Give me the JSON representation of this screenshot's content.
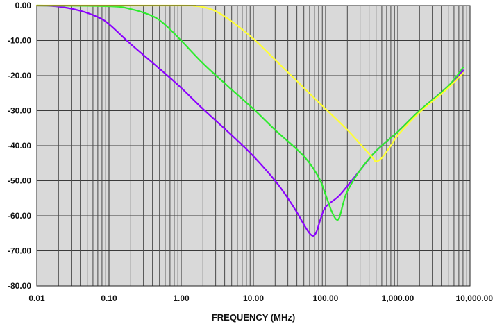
{
  "chart_data": {
    "type": "line",
    "title": "",
    "xlabel": "FREQUENCY (MHz)",
    "ylabel": "",
    "x_scale": "log",
    "xlim": [
      0.01,
      10000
    ],
    "ylim": [
      -80,
      0
    ],
    "grid": true,
    "background": "#d9d9d9",
    "x_ticks": [
      0.01,
      0.1,
      1,
      10,
      100,
      1000,
      10000
    ],
    "x_tick_labels": [
      "0.01",
      "0.10",
      "1.00",
      "10.00",
      "100.00",
      "1,000.00",
      "10,000.00"
    ],
    "y_ticks": [
      0,
      -10,
      -20,
      -30,
      -40,
      -50,
      -60,
      -70,
      -80
    ],
    "y_tick_labels": [
      "0.00",
      "-10.00",
      "-20.00",
      "-30.00",
      "-40.00",
      "-50.00",
      "-60.00",
      "-70.00",
      "-80.00"
    ],
    "series": [
      {
        "color": "#8b00ff",
        "points": [
          [
            0.01,
            0
          ],
          [
            0.02,
            -0.3
          ],
          [
            0.04,
            -1.5
          ],
          [
            0.07,
            -3.3
          ],
          [
            0.1,
            -5.3
          ],
          [
            0.2,
            -11
          ],
          [
            0.5,
            -18
          ],
          [
            1,
            -23.5
          ],
          [
            2,
            -29.5
          ],
          [
            5,
            -37
          ],
          [
            10,
            -43
          ],
          [
            20,
            -50
          ],
          [
            30,
            -55
          ],
          [
            40,
            -59
          ],
          [
            50,
            -62.5
          ],
          [
            60,
            -65
          ],
          [
            68,
            -65.7
          ],
          [
            75,
            -64.5
          ],
          [
            85,
            -61
          ],
          [
            100,
            -57.5
          ],
          [
            150,
            -54.5
          ],
          [
            200,
            -51.5
          ],
          [
            300,
            -47
          ],
          [
            500,
            -41.5
          ],
          [
            1000,
            -36
          ],
          [
            2000,
            -30
          ],
          [
            5000,
            -23
          ],
          [
            8000,
            -18.5
          ]
        ]
      },
      {
        "color": "#2eeb2e",
        "points": [
          [
            0.01,
            0
          ],
          [
            0.1,
            -0.2
          ],
          [
            0.2,
            -1
          ],
          [
            0.4,
            -3
          ],
          [
            0.6,
            -5.5
          ],
          [
            1,
            -10
          ],
          [
            2,
            -16.5
          ],
          [
            5,
            -24
          ],
          [
            10,
            -29.5
          ],
          [
            20,
            -35.5
          ],
          [
            50,
            -43
          ],
          [
            80,
            -49
          ],
          [
            100,
            -54
          ],
          [
            120,
            -58.5
          ],
          [
            140,
            -61
          ],
          [
            155,
            -60.5
          ],
          [
            175,
            -56.5
          ],
          [
            200,
            -53
          ],
          [
            300,
            -47
          ],
          [
            500,
            -41.5
          ],
          [
            1000,
            -36
          ],
          [
            2000,
            -30
          ],
          [
            5000,
            -23
          ],
          [
            8000,
            -17.7
          ]
        ]
      },
      {
        "color": "#ffff33",
        "points": [
          [
            0.01,
            0
          ],
          [
            1,
            0
          ],
          [
            1.5,
            -0.1
          ],
          [
            2,
            -0.4
          ],
          [
            3,
            -1.6
          ],
          [
            5,
            -4.5
          ],
          [
            10,
            -9.5
          ],
          [
            20,
            -15.5
          ],
          [
            50,
            -23.5
          ],
          [
            100,
            -29.5
          ],
          [
            200,
            -35.5
          ],
          [
            350,
            -41
          ],
          [
            450,
            -43.5
          ],
          [
            500,
            -44.5
          ],
          [
            600,
            -43.5
          ],
          [
            800,
            -40
          ],
          [
            1000,
            -37
          ],
          [
            2000,
            -30.5
          ],
          [
            5000,
            -23.5
          ],
          [
            8000,
            -19.3
          ]
        ]
      }
    ]
  }
}
